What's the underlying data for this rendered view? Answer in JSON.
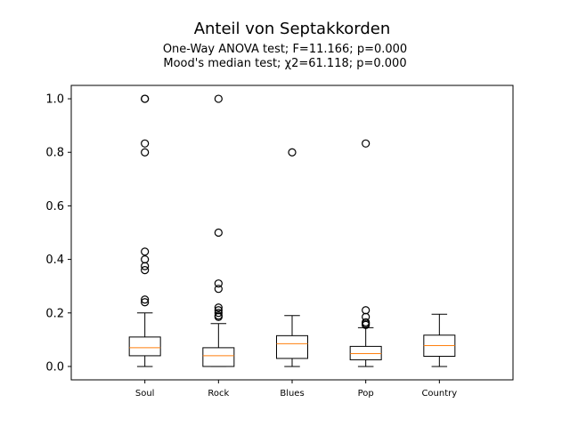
{
  "chart_data": {
    "type": "box",
    "title": "Anteil von Septakkorden",
    "subtitle_lines": [
      "One-Way ANOVA test; F=11.166; p=0.000",
      "Mood's median test; χ2=61.118; p=0.000"
    ],
    "xlabel": "",
    "ylabel": "",
    "ylim": [
      -0.05,
      1.05
    ],
    "yticks": [
      0.0,
      0.2,
      0.4,
      0.6,
      0.8,
      1.0
    ],
    "ytick_labels": [
      "0.0",
      "0.2",
      "0.4",
      "0.6",
      "0.8",
      "1.0"
    ],
    "grid": false,
    "categories": [
      "Soul",
      "Rock",
      "Blues",
      "Pop",
      "Country"
    ],
    "boxes": [
      {
        "category": "Soul",
        "whisker_low": 0.0,
        "q1": 0.04,
        "median": 0.07,
        "q3": 0.11,
        "whisker_high": 0.2,
        "outliers": [
          1.0,
          1.0,
          0.833,
          0.8,
          0.429,
          0.4,
          0.375,
          0.36,
          0.25,
          0.24
        ]
      },
      {
        "category": "Rock",
        "whisker_low": 0.0,
        "q1": 0.0,
        "median": 0.04,
        "q3": 0.07,
        "whisker_high": 0.16,
        "outliers": [
          1.0,
          0.5,
          0.31,
          0.29,
          0.22,
          0.21,
          0.2,
          0.19,
          0.185
        ]
      },
      {
        "category": "Blues",
        "whisker_low": 0.0,
        "q1": 0.03,
        "median": 0.085,
        "q3": 0.115,
        "whisker_high": 0.19,
        "outliers": [
          0.8
        ]
      },
      {
        "category": "Pop",
        "whisker_low": 0.0,
        "q1": 0.025,
        "median": 0.048,
        "q3": 0.075,
        "whisker_high": 0.145,
        "outliers": [
          0.833,
          0.21,
          0.185,
          0.165,
          0.16,
          0.155
        ]
      },
      {
        "category": "Country",
        "whisker_low": 0.0,
        "q1": 0.038,
        "median": 0.078,
        "q3": 0.117,
        "whisker_high": 0.195,
        "outliers": []
      }
    ],
    "colors": {
      "box": "#000000",
      "median": "#ff7f0e",
      "outlier": "#000000"
    }
  }
}
